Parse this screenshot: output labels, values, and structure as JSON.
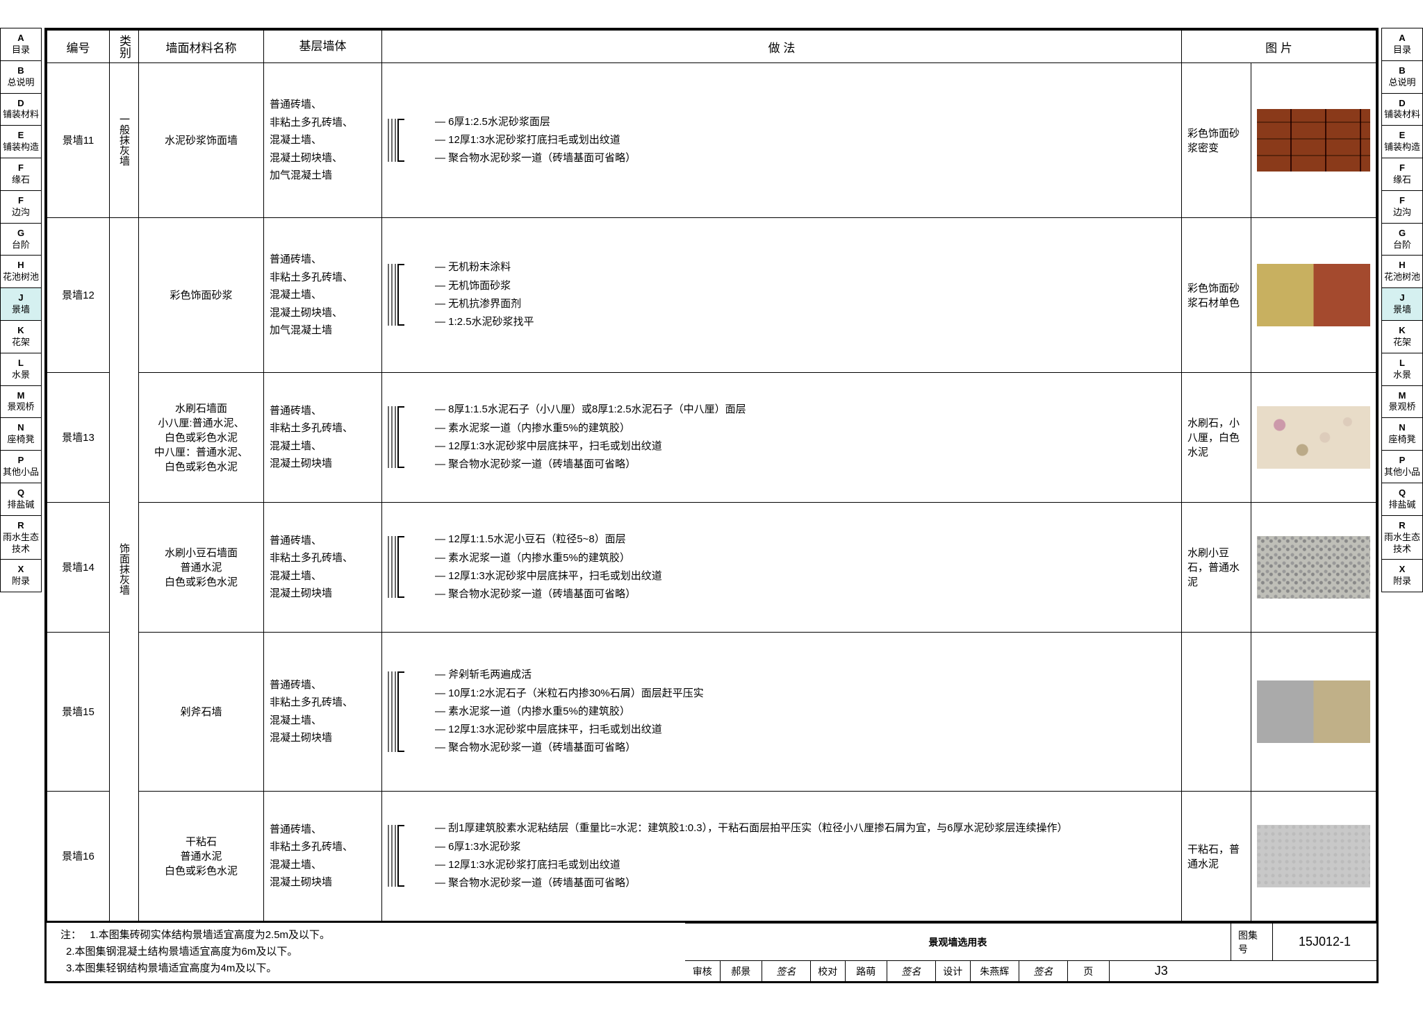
{
  "nav": [
    {
      "letter": "A",
      "label": "目录"
    },
    {
      "letter": "B",
      "label": "总说明"
    },
    {
      "letter": "D",
      "label": "铺装材料"
    },
    {
      "letter": "E",
      "label": "铺装构造"
    },
    {
      "letter": "F",
      "label": "缘石"
    },
    {
      "letter": "F",
      "label": "边沟"
    },
    {
      "letter": "G",
      "label": "台阶"
    },
    {
      "letter": "H",
      "label": "花池树池"
    },
    {
      "letter": "J",
      "label": "景墙",
      "active": true
    },
    {
      "letter": "K",
      "label": "花架"
    },
    {
      "letter": "L",
      "label": "水景"
    },
    {
      "letter": "M",
      "label": "景观桥"
    },
    {
      "letter": "N",
      "label": "座椅凳"
    },
    {
      "letter": "P",
      "label": "其他小品"
    },
    {
      "letter": "Q",
      "label": "排盐碱"
    },
    {
      "letter": "R",
      "label": "雨水生态技术"
    },
    {
      "letter": "X",
      "label": "附录"
    }
  ],
  "headers": {
    "c1": "编号",
    "c2": "类别",
    "c3": "墙面材料名称",
    "c4": "基层墙体",
    "c5": "做 法",
    "c6": "图 片"
  },
  "cat1": "一般抹灰墙",
  "cat2": "饰面抹灰墙",
  "rows": [
    {
      "num": "景墙11",
      "mat": "水泥砂浆饰面墙",
      "base": "普通砖墙、\n非粘土多孔砖墙、\n混凝土墙、\n混凝土砌块墙、\n加气混凝土墙",
      "method": [
        "6厚1:2.5水泥砂浆面层",
        "12厚1:3水泥砂浆打底扫毛或划出纹道",
        "聚合物水泥砂浆一道（砖墙基面可省略）"
      ],
      "imglbl": "彩色饰面砂浆密变",
      "swatch": "sw-brick"
    },
    {
      "num": "景墙12",
      "mat": "彩色饰面砂浆",
      "base": "普通砖墙、\n非粘土多孔砖墙、\n混凝土墙、\n混凝土砌块墙、\n加气混凝土墙",
      "method": [
        "无机粉末涂料",
        "无机饰面砂浆",
        "无机抗渗界面剂",
        "1:2.5水泥砂浆找平"
      ],
      "imglbl": "彩色饰面砂浆石材单色",
      "swatch": "sw-sand"
    },
    {
      "num": "景墙13",
      "mat": "水刷石墙面\n小八厘:普通水泥、\n白色或彩色水泥\n中八厘：普通水泥、\n白色或彩色水泥",
      "base": "普通砖墙、\n非粘土多孔砖墙、\n混凝土墙、\n混凝土砌块墙",
      "method": [
        "8厚1:1.5水泥石子（小八厘）或8厚1:2.5水泥石子（中八厘）面层",
        "素水泥浆一道（内掺水重5%的建筑胶）",
        "12厚1:3水泥砂浆中层底抹平，扫毛或划出纹道",
        "聚合物水泥砂浆一道（砖墙基面可省略）"
      ],
      "imglbl": "水刷石，小八厘，白色水泥",
      "swatch": "sw-pebble"
    },
    {
      "num": "景墙14",
      "mat": "水刷小豆石墙面\n普通水泥\n白色或彩色水泥",
      "base": "普通砖墙、\n非粘土多孔砖墙、\n混凝土墙、\n混凝土砌块墙",
      "method": [
        "12厚1:1.5水泥小豆石（粒径5~8）面层",
        "素水泥浆一道（内掺水重5%的建筑胶）",
        "12厚1:3水泥砂浆中层底抹平，扫毛或划出纹道",
        "聚合物水泥砂浆一道（砖墙基面可省略）"
      ],
      "imglbl": "水刷小豆石，普通水泥",
      "swatch": "sw-granite"
    },
    {
      "num": "景墙15",
      "mat": "剁斧石墙",
      "base": "普通砖墙、\n非粘土多孔砖墙、\n混凝土墙、\n混凝土砌块墙",
      "method": [
        "斧剁斩毛两遍成活",
        "10厚1:2水泥石子（米粒石内掺30%石屑）面层赶平压实",
        "素水泥浆一道（内掺水重5%的建筑胶）",
        "12厚1:3水泥砂浆中层底抹平，扫毛或划出纹道",
        "聚合物水泥砂浆一道（砖墙基面可省略）"
      ],
      "imglbl": "",
      "swatch": "sw-split"
    },
    {
      "num": "景墙16",
      "mat": "干粘石\n普通水泥\n白色或彩色水泥",
      "base": "普通砖墙、\n非粘土多孔砖墙、\n混凝土墙、\n混凝土砌块墙",
      "method": [
        "刮1厚建筑胶素水泥粘结层（重量比=水泥：建筑胶1:0.3），干粘石面层拍平压实（粒径小八厘掺石屑为宜，与6厚水泥砂浆层连续操作）",
        "6厚1:3水泥砂浆",
        "12厚1:3水泥砂浆打底扫毛或划出纹道",
        "聚合物水泥砂浆一道（砖墙基面可省略）"
      ],
      "imglbl": "干粘石，普通水泥",
      "swatch": "sw-grey"
    }
  ],
  "notes_label": "注：",
  "notes": [
    "1.本图集砖砌实体结构景墙适宜高度为2.5m及以下。",
    "2.本图集钢混凝土结构景墙适宜高度为6m及以下。",
    "3.本图集轻钢结构景墙适宜高度为4m及以下。"
  ],
  "title": "景观墙选用表",
  "footer": {
    "tujihao": "图集号",
    "tujihao_v": "15J012-1",
    "shenhe": "审核",
    "shenhe_n": "郝景",
    "jiaodui": "校对",
    "jiaodui_n": "路萌",
    "sheji": "设计",
    "sheji_n": "朱燕辉",
    "ye": "页",
    "ye_v": "J3"
  }
}
